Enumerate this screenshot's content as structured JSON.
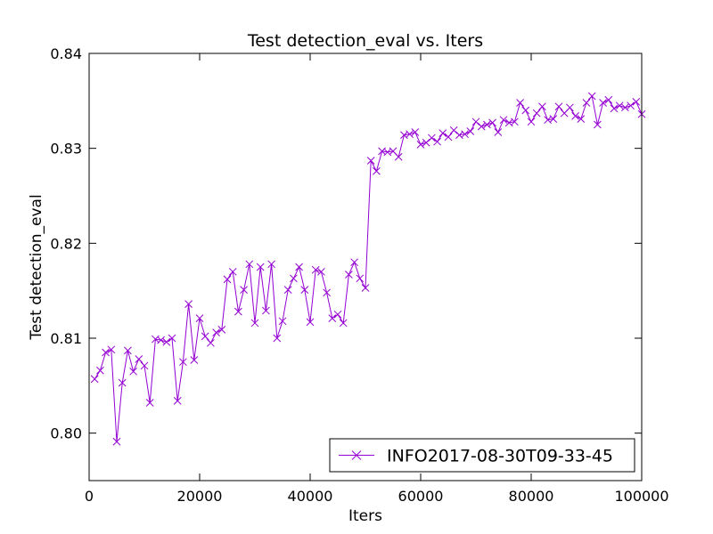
{
  "chart_data": {
    "type": "line",
    "title": "Test detection_eval  vs. Iters",
    "xlabel": "Iters",
    "ylabel": "Test detection_eval",
    "xlim": [
      0,
      100000
    ],
    "ylim": [
      0.795,
      0.84
    ],
    "xticks": [
      0,
      20000,
      40000,
      60000,
      80000,
      100000
    ],
    "xtick_labels": [
      "0",
      "20000",
      "40000",
      "60000",
      "80000",
      "100000"
    ],
    "yticks": [
      0.8,
      0.81,
      0.82,
      0.83,
      0.84
    ],
    "ytick_labels": [
      "0.80",
      "0.81",
      "0.82",
      "0.83",
      "0.84"
    ],
    "grid": false,
    "legend_position": "lower-right",
    "series": [
      {
        "name": "INFO2017-08-30T09-33-45",
        "color": "#9400d3",
        "marker": "x",
        "x": [
          1000,
          2000,
          3000,
          4000,
          5000,
          6000,
          7000,
          8000,
          9000,
          10000,
          11000,
          12000,
          13000,
          14000,
          15000,
          16000,
          17000,
          18000,
          19000,
          20000,
          21000,
          22000,
          23000,
          24000,
          25000,
          26000,
          27000,
          28000,
          29000,
          30000,
          31000,
          32000,
          33000,
          34000,
          35000,
          36000,
          37000,
          38000,
          39000,
          40000,
          41000,
          42000,
          43000,
          44000,
          45000,
          46000,
          47000,
          48000,
          49000,
          50000,
          51000,
          52000,
          53000,
          54000,
          55000,
          56000,
          57000,
          58000,
          59000,
          60000,
          61000,
          62000,
          63000,
          64000,
          65000,
          66000,
          67000,
          68000,
          69000,
          70000,
          71000,
          72000,
          73000,
          74000,
          75000,
          76000,
          77000,
          78000,
          79000,
          80000,
          81000,
          82000,
          83000,
          84000,
          85000,
          86000,
          87000,
          88000,
          89000,
          90000,
          91000,
          92000,
          93000,
          94000,
          95000,
          96000,
          97000,
          98000,
          99000,
          100000
        ],
        "y": [
          0.8057,
          0.8066,
          0.8085,
          0.8088,
          0.7991,
          0.8053,
          0.8087,
          0.8065,
          0.8078,
          0.8071,
          0.8032,
          0.8099,
          0.8098,
          0.8096,
          0.81,
          0.8034,
          0.8075,
          0.8136,
          0.8077,
          0.8121,
          0.8102,
          0.8095,
          0.8106,
          0.8109,
          0.8162,
          0.817,
          0.8128,
          0.8151,
          0.8178,
          0.8116,
          0.8175,
          0.8129,
          0.8178,
          0.81,
          0.8118,
          0.8151,
          0.8163,
          0.8175,
          0.8151,
          0.8117,
          0.8172,
          0.817,
          0.8148,
          0.8121,
          0.8125,
          0.8116,
          0.8167,
          0.818,
          0.8163,
          0.8153,
          0.8287,
          0.8276,
          0.8297,
          0.8296,
          0.8297,
          0.8291,
          0.8314,
          0.8315,
          0.8317,
          0.8304,
          0.8306,
          0.8311,
          0.8307,
          0.8316,
          0.8312,
          0.8319,
          0.8314,
          0.8315,
          0.8318,
          0.8328,
          0.8323,
          0.8325,
          0.8327,
          0.8317,
          0.833,
          0.8327,
          0.8328,
          0.8348,
          0.834,
          0.8328,
          0.8337,
          0.8344,
          0.833,
          0.8331,
          0.8344,
          0.8337,
          0.8343,
          0.8334,
          0.8331,
          0.8348,
          0.8355,
          0.8325,
          0.8348,
          0.8351,
          0.8342,
          0.8345,
          0.8343,
          0.8345,
          0.8349,
          0.8336
        ]
      }
    ]
  }
}
